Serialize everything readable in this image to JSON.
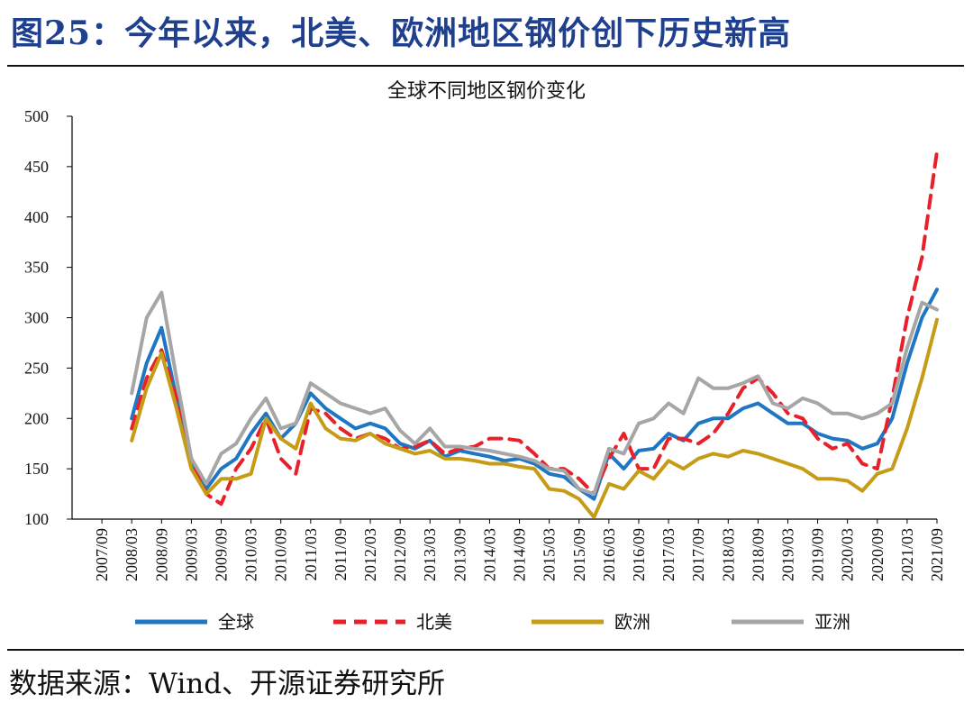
{
  "figure": {
    "title": "图25：今年以来，北美、欧洲地区钢价创下历史新高",
    "source": "数据来源：Wind、开源证券研究所"
  },
  "chart_data": {
    "type": "line",
    "title": "全球不同地区钢价变化",
    "xlabel": "",
    "ylabel": "",
    "ylim": [
      100,
      500
    ],
    "yticks": [
      100,
      150,
      200,
      250,
      300,
      350,
      400,
      450,
      500
    ],
    "x_tick_labels": [
      "2007/09",
      "2008/03",
      "2008/09",
      "2009/03",
      "2009/09",
      "2010/03",
      "2010/09",
      "2011/03",
      "2011/09",
      "2012/03",
      "2012/09",
      "2013/03",
      "2013/09",
      "2014/03",
      "2014/09",
      "2015/03",
      "2015/09",
      "2016/03",
      "2016/09",
      "2017/03",
      "2017/09",
      "2018/03",
      "2018/09",
      "2019/03",
      "2019/09",
      "2020/03",
      "2020/09",
      "2021/03",
      "2021/09"
    ],
    "grid": false,
    "legend_position": "bottom",
    "x": [
      "2008/03",
      "2008/06",
      "2008/09",
      "2008/12",
      "2009/03",
      "2009/06",
      "2009/09",
      "2009/12",
      "2010/03",
      "2010/06",
      "2010/09",
      "2010/12",
      "2011/03",
      "2011/06",
      "2011/09",
      "2011/12",
      "2012/03",
      "2012/06",
      "2012/09",
      "2012/12",
      "2013/03",
      "2013/06",
      "2013/09",
      "2013/12",
      "2014/03",
      "2014/06",
      "2014/09",
      "2014/12",
      "2015/03",
      "2015/06",
      "2015/09",
      "2015/12",
      "2016/03",
      "2016/06",
      "2016/09",
      "2016/12",
      "2017/03",
      "2017/06",
      "2017/09",
      "2017/12",
      "2018/03",
      "2018/06",
      "2018/09",
      "2018/12",
      "2019/03",
      "2019/06",
      "2019/09",
      "2019/12",
      "2020/03",
      "2020/06",
      "2020/09",
      "2020/12",
      "2021/03",
      "2021/06",
      "2021/09"
    ],
    "series": [
      {
        "name": "全球",
        "color": "#1f77c4",
        "dash": "solid",
        "values": [
          200,
          255,
          290,
          220,
          155,
          130,
          150,
          160,
          185,
          205,
          180,
          195,
          225,
          210,
          200,
          190,
          195,
          190,
          175,
          170,
          178,
          162,
          168,
          165,
          162,
          158,
          160,
          155,
          145,
          142,
          130,
          120,
          165,
          150,
          168,
          170,
          185,
          178,
          195,
          200,
          200,
          210,
          215,
          205,
          195,
          195,
          185,
          180,
          178,
          170,
          175,
          200,
          255,
          300,
          328
        ]
      },
      {
        "name": "北美",
        "color": "#e8202a",
        "dash": "dashed",
        "values": [
          190,
          240,
          268,
          220,
          160,
          125,
          115,
          150,
          170,
          200,
          160,
          145,
          210,
          205,
          190,
          180,
          185,
          180,
          170,
          172,
          178,
          165,
          170,
          172,
          180,
          180,
          178,
          165,
          150,
          150,
          140,
          125,
          160,
          185,
          150,
          150,
          180,
          180,
          175,
          185,
          205,
          230,
          240,
          225,
          205,
          200,
          180,
          170,
          175,
          155,
          150,
          220,
          300,
          360,
          465
        ]
      },
      {
        "name": "欧洲",
        "color": "#c69c16",
        "dash": "solid",
        "values": [
          178,
          230,
          265,
          210,
          150,
          125,
          140,
          140,
          145,
          200,
          180,
          170,
          215,
          190,
          180,
          178,
          185,
          175,
          170,
          165,
          168,
          160,
          160,
          158,
          155,
          155,
          152,
          150,
          130,
          128,
          120,
          102,
          135,
          130,
          148,
          140,
          158,
          150,
          160,
          165,
          162,
          168,
          165,
          160,
          155,
          150,
          140,
          140,
          138,
          128,
          145,
          150,
          190,
          240,
          298
        ]
      },
      {
        "name": "亚洲",
        "color": "#a6a6a6",
        "dash": "solid",
        "values": [
          225,
          300,
          325,
          240,
          160,
          135,
          165,
          175,
          200,
          220,
          190,
          195,
          235,
          225,
          215,
          210,
          205,
          210,
          188,
          175,
          190,
          172,
          172,
          170,
          168,
          165,
          162,
          158,
          150,
          148,
          130,
          125,
          170,
          165,
          195,
          200,
          215,
          205,
          240,
          230,
          230,
          235,
          242,
          215,
          210,
          220,
          215,
          205,
          205,
          200,
          205,
          215,
          270,
          315,
          308
        ]
      }
    ]
  }
}
